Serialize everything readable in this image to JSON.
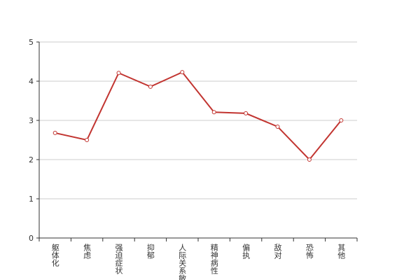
{
  "chart_data": {
    "type": "line",
    "categories": [
      "躯体化",
      "焦虑",
      "强迫症状",
      "抑郁",
      "人际关系敏感",
      "精神病性",
      "偏执",
      "敌对",
      "恐怖",
      "其他"
    ],
    "values": [
      2.68,
      2.5,
      4.21,
      3.86,
      4.23,
      3.21,
      3.18,
      2.84,
      2.0,
      3.0
    ],
    "color": "#c23531",
    "ylim": [
      0,
      5
    ],
    "yticks": [
      0,
      1,
      2,
      3,
      4,
      5
    ],
    "grid": true
  }
}
